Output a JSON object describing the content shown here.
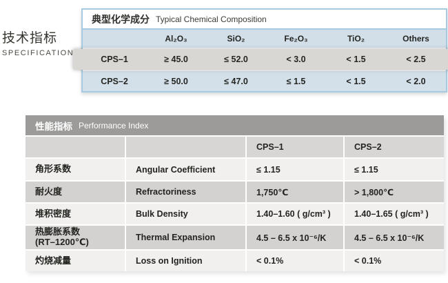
{
  "page": {
    "heading_zh": "技术指标",
    "heading_en": "SPECIFICATION"
  },
  "chemical": {
    "title_zh": "典型化学成分",
    "title_en": "Typical Chemical Composition",
    "columns": [
      "",
      "Al₂O₃",
      "SiO₂",
      "Fe₂O₃",
      "TiO₂",
      "Others"
    ],
    "rows": [
      {
        "label": "CPS–1",
        "values": [
          "≥ 45.0",
          "≤ 52.0",
          "< 3.0",
          "< 1.5",
          "< 2.5"
        ]
      },
      {
        "label": "CPS–2",
        "values": [
          "≥ 50.0",
          "≤ 47.0",
          "≤ 1.5",
          "< 1.5",
          "< 2.0"
        ]
      }
    ]
  },
  "performance": {
    "title_zh": "性能指标",
    "title_en": "Performance Index",
    "col1_header": "CPS–1",
    "col2_header": "CPS–2",
    "rows": [
      {
        "zh": "角形系数",
        "en": "Angular Coefficient",
        "cps1": "≤ 1.15",
        "cps2": "≤ 1.15"
      },
      {
        "zh": "耐火度",
        "en": "Refractoriness",
        "cps1": "1,750℃",
        "cps2": "> 1,800℃"
      },
      {
        "zh": "堆积密度",
        "en": "Bulk Density",
        "cps1": "1.40–1.60 ( g/cm³ )",
        "cps2": "1.40–1.65 ( g/cm³ )"
      },
      {
        "zh": "热膨胀系数\n(RT–1200℃)",
        "en": "Thermal Expansion",
        "cps1": "4.5 – 6.5 x 10⁻⁶/K",
        "cps2": "4.5 – 6.5 x 10⁻⁶/K"
      },
      {
        "zh": "灼烧减量",
        "en": "Loss on Ignition",
        "cps1": "< 0.1%",
        "cps2": "< 0.1%"
      }
    ]
  },
  "colors": {
    "table_border_blue": "#a6cbe0",
    "row_blue": "#d3e0ea",
    "header_blue": "#d2dfe9",
    "highlight_gray": "#d9d7d4",
    "perf_header_gray": "#9c9b99",
    "perf_row_light": "#f1f0ee",
    "perf_row_mid": "#d3d2d0"
  }
}
